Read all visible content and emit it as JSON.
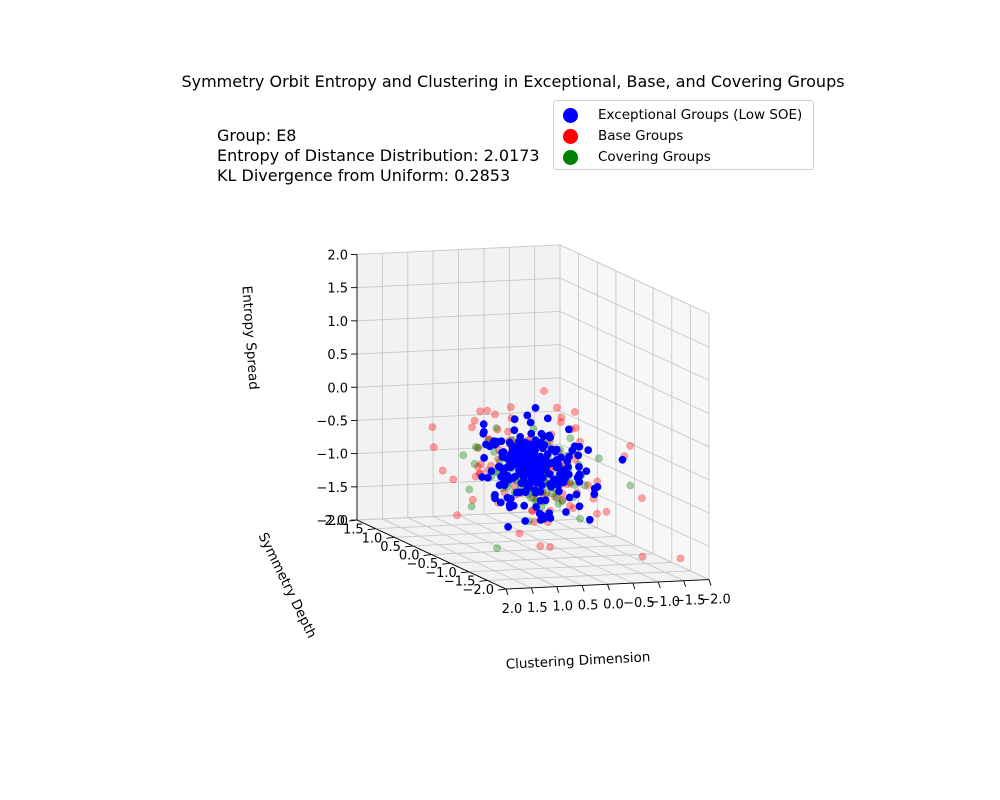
{
  "chart_data": {
    "type": "scatter",
    "projection": "3d",
    "title": "Symmetry Orbit Entropy and Clustering in Exceptional, Base, and Covering Groups",
    "annotation": [
      "Group: E8",
      "Entropy of Distance Distribution: 2.0173",
      "KL Divergence from Uniform: 0.2853"
    ],
    "axes": {
      "x": {
        "label": "Clustering Dimension",
        "lim": [
          -2,
          2
        ],
        "ticks": [
          "2.0",
          "1.5",
          "1.0",
          "0.5",
          "0.0",
          "−0.5",
          "−1.0",
          "−1.5",
          "−2.0"
        ]
      },
      "y": {
        "label": "Symmetry Depth",
        "lim": [
          -2,
          2
        ],
        "ticks": [
          "−2.0",
          "−1.5",
          "−1.0",
          "−0.5",
          "0.0",
          "0.5",
          "1.0",
          "1.5",
          "2.0"
        ]
      },
      "z": {
        "label": "Entropy Spread",
        "lim": [
          -2,
          2
        ],
        "ticks": [
          "−2.0",
          "−1.5",
          "−1.0",
          "−0.5",
          "0.0",
          "0.5",
          "1.0",
          "1.5",
          "2.0"
        ]
      }
    },
    "grid": true,
    "legend_position": "top-right",
    "series": [
      {
        "name": "Exceptional Groups (Low SOE)",
        "color": "#0000ff",
        "alpha": 1.0,
        "n_points": 240,
        "center": [
          0,
          0,
          -0.8
        ],
        "spread": [
          0.38,
          0.38,
          0.3
        ]
      },
      {
        "name": "Base Groups",
        "color": "#ff0000",
        "alpha": 0.35,
        "n_points": 110,
        "center": [
          0,
          0,
          -0.8
        ],
        "spread": [
          0.7,
          0.7,
          0.45
        ]
      },
      {
        "name": "Covering Groups",
        "color": "#008000",
        "alpha": 0.35,
        "n_points": 110,
        "center": [
          0,
          0,
          -0.8
        ],
        "spread": [
          0.45,
          0.45,
          0.3
        ]
      }
    ]
  }
}
